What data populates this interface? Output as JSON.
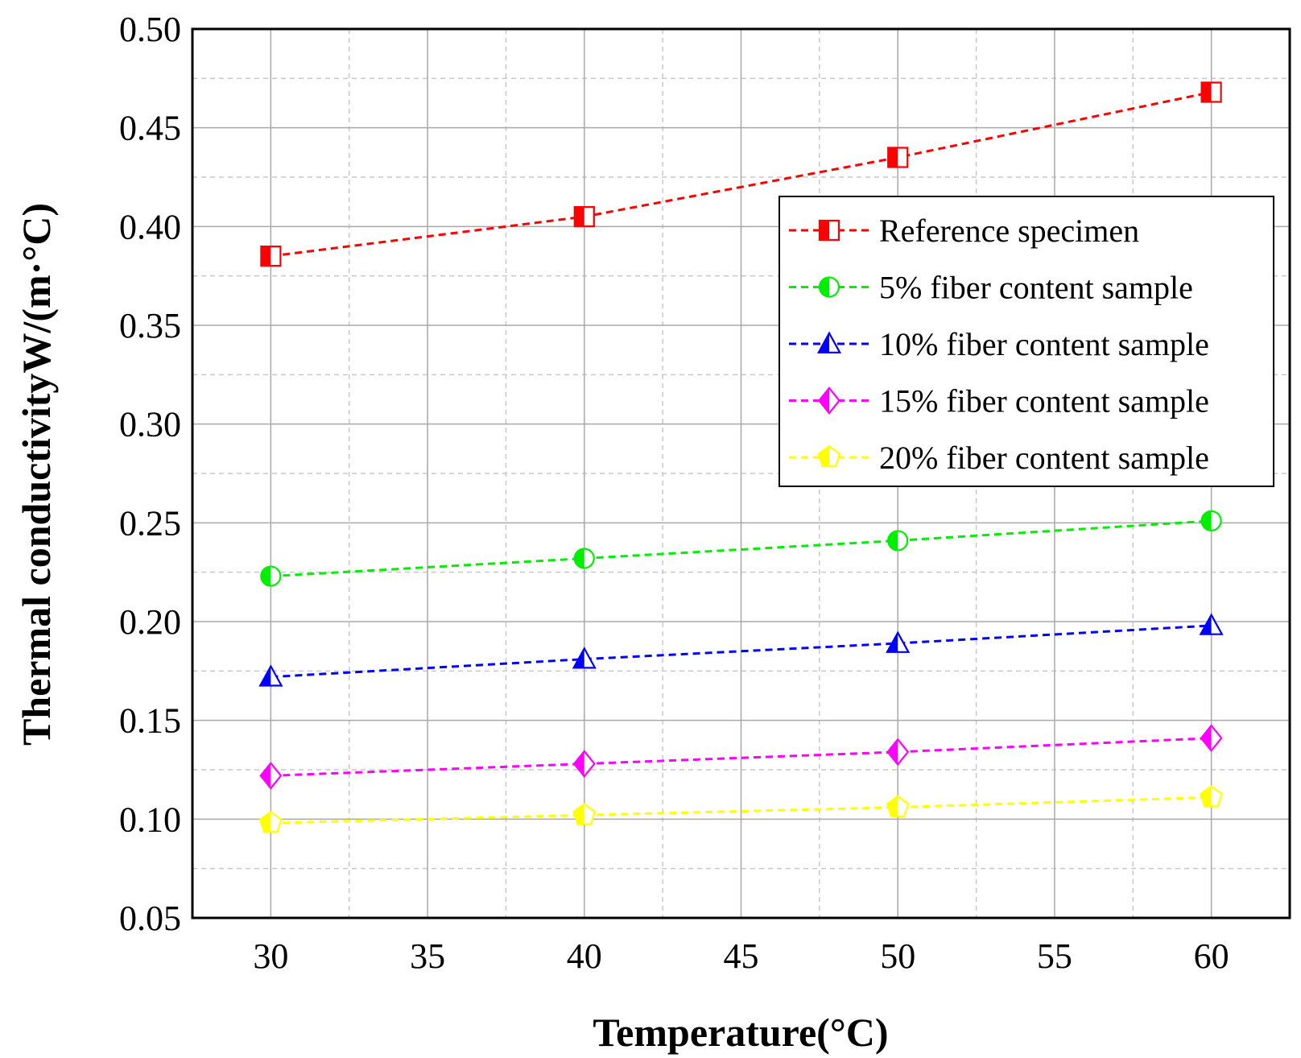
{
  "chart_data": {
    "type": "line",
    "title": "",
    "xlabel": "Temperature(°C)",
    "ylabel": "Thermal conductivityW/(m·°C)",
    "x": [
      30,
      40,
      50,
      60
    ],
    "xlim": [
      27.5,
      62.5
    ],
    "ylim": [
      0.05,
      0.5
    ],
    "xticks": [
      30,
      35,
      40,
      45,
      50,
      55,
      60
    ],
    "xtick_labels": [
      "30",
      "35",
      "40",
      "45",
      "50",
      "55",
      "60"
    ],
    "yticks": [
      0.05,
      0.1,
      0.15,
      0.2,
      0.25,
      0.3,
      0.35,
      0.4,
      0.45,
      0.5
    ],
    "ytick_labels": [
      "0.05",
      "0.10",
      "0.15",
      "0.20",
      "0.25",
      "0.30",
      "0.35",
      "0.40",
      "0.45",
      "0.50"
    ],
    "grid": true,
    "legend_position": "upper-right",
    "series": [
      {
        "name": "Reference specimen",
        "values": [
          0.385,
          0.405,
          0.435,
          0.468
        ],
        "color": "#ff0000",
        "marker": "square"
      },
      {
        "name": "5% fiber content sample",
        "values": [
          0.223,
          0.232,
          0.241,
          0.251
        ],
        "color": "#00ee00",
        "marker": "circle"
      },
      {
        "name": "10% fiber content sample",
        "values": [
          0.172,
          0.181,
          0.189,
          0.198
        ],
        "color": "#0000ff",
        "marker": "triangle"
      },
      {
        "name": "15% fiber content sample",
        "values": [
          0.122,
          0.128,
          0.134,
          0.141
        ],
        "color": "#ff00ff",
        "marker": "diamond"
      },
      {
        "name": "20% fiber content sample",
        "values": [
          0.098,
          0.102,
          0.106,
          0.111
        ],
        "color": "#ffff00",
        "marker": "pentagon"
      }
    ]
  }
}
